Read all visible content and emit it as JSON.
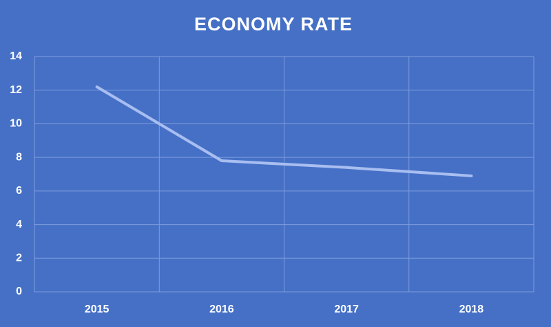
{
  "chart_data": {
    "type": "line",
    "title": "ECONOMY RATE",
    "categories": [
      "2015",
      "2016",
      "2017",
      "2018"
    ],
    "values": [
      12.2,
      7.8,
      7.4,
      6.9
    ],
    "color": "#a9bef0",
    "ylim": [
      0,
      14
    ],
    "yticks": [
      0,
      2,
      4,
      6,
      8,
      10,
      12,
      14
    ],
    "grid": true
  }
}
